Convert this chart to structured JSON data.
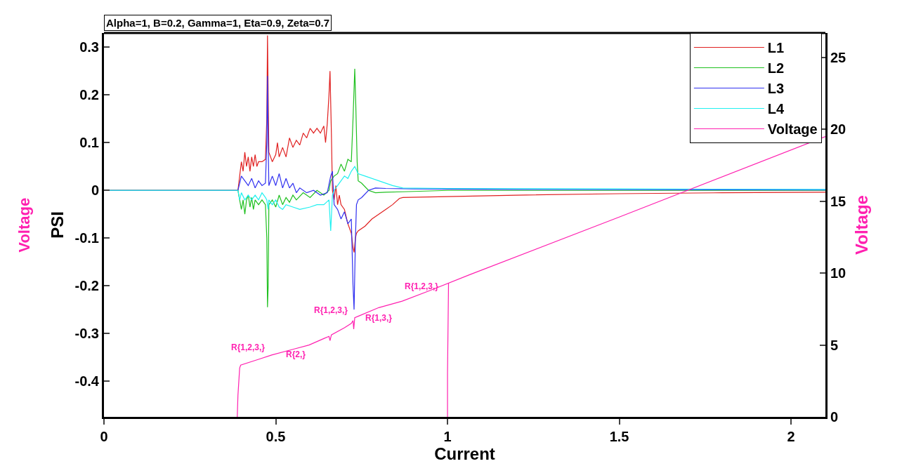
{
  "chart_data": {
    "type": "line",
    "title": "Alpha=1, B=0.2, Gamma=1, Eta=0.9, Zeta=0.7",
    "xlabel": "Current",
    "ylabel": "PSI",
    "y2label": "Voltage",
    "xlim": [
      0,
      2.1
    ],
    "xticks": [
      0,
      0.5,
      1,
      1.5,
      2
    ],
    "ylim": [
      -0.475,
      0.33
    ],
    "yticks": [
      -0.4,
      -0.3,
      -0.2,
      -0.1,
      0,
      0.1,
      0.2,
      0.3
    ],
    "y2lim": [
      0,
      26.7
    ],
    "y2ticks": [
      0,
      5,
      10,
      15,
      20,
      25
    ],
    "grid": false,
    "legend": "top right",
    "marker": "none",
    "line_style": "solid",
    "series": [
      {
        "name": "L1",
        "color": "#e02020",
        "x": [
          0,
          0.39,
          0.395,
          0.4,
          0.405,
          0.41,
          0.415,
          0.42,
          0.425,
          0.43,
          0.435,
          0.44,
          0.445,
          0.45,
          0.46,
          0.47,
          0.474,
          0.476,
          0.478,
          0.48,
          0.485,
          0.49,
          0.5,
          0.505,
          0.51,
          0.52,
          0.53,
          0.54,
          0.55,
          0.56,
          0.57,
          0.58,
          0.59,
          0.6,
          0.61,
          0.62,
          0.63,
          0.64,
          0.645,
          0.65,
          0.655,
          0.658,
          0.662,
          0.665,
          0.67,
          0.675,
          0.68,
          0.685,
          0.69,
          0.7,
          0.71,
          0.72,
          0.725,
          0.728,
          0.732,
          0.735,
          0.74,
          0.76,
          0.78,
          0.8,
          0.82,
          0.84,
          0.86,
          0.87,
          1.0,
          1.2,
          1.5,
          1.8,
          2.1
        ],
        "values": [
          0,
          0,
          0.03,
          0.06,
          0.04,
          0.08,
          0.05,
          0.07,
          0.04,
          0.07,
          0.05,
          0.075,
          0.05,
          0.06,
          0.06,
          0.065,
          0.15,
          0.325,
          0.2,
          0.08,
          0.07,
          0.06,
          0.075,
          0.1,
          0.07,
          0.09,
          0.07,
          0.11,
          0.09,
          0.105,
          0.095,
          0.12,
          0.11,
          0.13,
          0.12,
          0.13,
          0.12,
          0.135,
          0.1,
          0.14,
          0.2,
          0.25,
          0.12,
          0.0,
          -0.02,
          0.01,
          -0.03,
          -0.01,
          -0.03,
          -0.04,
          -0.07,
          -0.09,
          -0.12,
          -0.13,
          -0.1,
          -0.09,
          -0.085,
          -0.075,
          -0.06,
          -0.05,
          -0.04,
          -0.03,
          -0.017,
          -0.015,
          -0.013,
          -0.01,
          -0.007,
          -0.005,
          -0.004
        ]
      },
      {
        "name": "L2",
        "color": "#20c020",
        "x": [
          0,
          0.39,
          0.395,
          0.4,
          0.405,
          0.41,
          0.415,
          0.42,
          0.425,
          0.43,
          0.435,
          0.44,
          0.45,
          0.46,
          0.47,
          0.474,
          0.476,
          0.478,
          0.48,
          0.49,
          0.5,
          0.51,
          0.52,
          0.53,
          0.54,
          0.55,
          0.56,
          0.58,
          0.6,
          0.62,
          0.64,
          0.655,
          0.66,
          0.67,
          0.68,
          0.69,
          0.7,
          0.71,
          0.72,
          0.725,
          0.73,
          0.733,
          0.737,
          0.74,
          0.75,
          0.77,
          0.79,
          0.82,
          0.87,
          1.0,
          2.1
        ],
        "values": [
          0,
          0,
          -0.02,
          -0.04,
          -0.02,
          -0.05,
          -0.02,
          -0.01,
          -0.035,
          -0.015,
          -0.04,
          -0.02,
          -0.03,
          -0.02,
          -0.03,
          -0.1,
          -0.245,
          -0.2,
          -0.03,
          -0.02,
          -0.035,
          -0.01,
          -0.03,
          -0.015,
          -0.025,
          -0.01,
          -0.02,
          -0.005,
          -0.015,
          0.0,
          -0.01,
          0.0,
          0.02,
          0.03,
          0.035,
          0.055,
          0.04,
          0.065,
          0.06,
          0.15,
          0.255,
          0.18,
          0.06,
          0.02,
          0.015,
          0.0,
          -0.005,
          -0.004,
          -0.003,
          0.0,
          0.0
        ]
      },
      {
        "name": "L3",
        "color": "#3030f0",
        "x": [
          0,
          0.39,
          0.395,
          0.4,
          0.41,
          0.42,
          0.43,
          0.44,
          0.45,
          0.46,
          0.47,
          0.474,
          0.476,
          0.478,
          0.48,
          0.49,
          0.5,
          0.51,
          0.52,
          0.53,
          0.54,
          0.55,
          0.56,
          0.57,
          0.59,
          0.61,
          0.63,
          0.65,
          0.66,
          0.665,
          0.67,
          0.68,
          0.69,
          0.7,
          0.71,
          0.72,
          0.725,
          0.728,
          0.732,
          0.735,
          0.74,
          0.75,
          0.77,
          0.79,
          0.82,
          0.9,
          1.2,
          2.1
        ],
        "values": [
          0,
          0,
          0.015,
          0.03,
          0.02,
          0.01,
          0.025,
          0.005,
          0.02,
          0.01,
          0.015,
          0.1,
          0.24,
          0.1,
          0.01,
          0.03,
          0.01,
          0.035,
          0.005,
          0.025,
          0.005,
          0.015,
          -0.005,
          0.005,
          -0.005,
          0.0,
          -0.01,
          -0.005,
          0.03,
          0.04,
          -0.03,
          -0.04,
          -0.06,
          -0.045,
          -0.07,
          -0.06,
          -0.2,
          -0.25,
          -0.1,
          -0.03,
          -0.02,
          -0.015,
          0.0,
          0.005,
          0.004,
          0.003,
          0.002,
          0.001
        ]
      },
      {
        "name": "L4",
        "color": "#20f0f0",
        "x": [
          0,
          0.39,
          0.395,
          0.4,
          0.41,
          0.42,
          0.43,
          0.44,
          0.45,
          0.46,
          0.47,
          0.474,
          0.478,
          0.48,
          0.49,
          0.5,
          0.51,
          0.52,
          0.53,
          0.55,
          0.57,
          0.6,
          0.62,
          0.64,
          0.655,
          0.66,
          0.665,
          0.67,
          0.68,
          0.69,
          0.7,
          0.71,
          0.72,
          0.73,
          0.74,
          0.76,
          0.8,
          0.84,
          0.87,
          1.0,
          1.5,
          2.1
        ],
        "values": [
          0,
          0,
          -0.02,
          -0.005,
          -0.02,
          -0.01,
          -0.02,
          -0.01,
          -0.02,
          -0.005,
          -0.015,
          -0.02,
          -0.04,
          -0.02,
          -0.03,
          -0.02,
          -0.035,
          -0.04,
          -0.03,
          -0.035,
          -0.04,
          -0.035,
          -0.03,
          -0.03,
          -0.02,
          -0.085,
          -0.01,
          0.0,
          0.01,
          0.02,
          0.03,
          0.025,
          0.04,
          0.05,
          0.035,
          0.03,
          0.02,
          0.01,
          0.005,
          0.004,
          0.003,
          0.002
        ]
      },
      {
        "name": "Voltage",
        "color": "#ff20b0",
        "axis": "y2",
        "x": [
          0.388,
          0.39,
          0.395,
          0.398,
          0.45,
          0.488,
          0.55,
          0.597,
          0.64,
          0.655,
          0.658,
          0.662,
          0.7,
          0.72,
          0.725,
          0.727,
          0.73,
          0.74,
          0.8,
          0.868,
          0.95,
          1.066,
          1.5,
          2.1,
          1.5,
          1.0,
          1.0,
          1.003
        ],
        "values": [
          0,
          1.5,
          3.4,
          3.6,
          4.0,
          4.3,
          4.7,
          5.0,
          5.45,
          5.6,
          5.3,
          5.7,
          6.2,
          6.5,
          6.7,
          6.1,
          6.9,
          7.0,
          7.6,
          8.05,
          8.8,
          9.9,
          13.9,
          19.5,
          null,
          0,
          3,
          9.3
        ]
      }
    ],
    "annotations": [
      "R{1,2,3,}",
      "R{2,}",
      "R{1,2,3,}",
      "R{1,3,}",
      "R{1,2,3,}",
      "Voltage"
    ]
  }
}
